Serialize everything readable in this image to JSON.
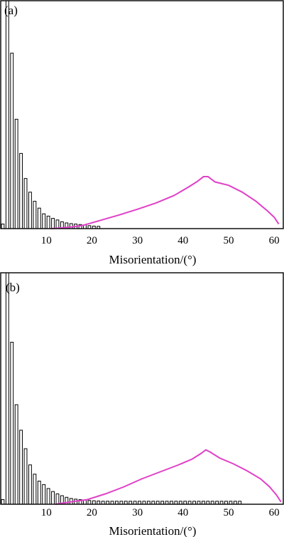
{
  "chart_data": [
    {
      "type": "bar",
      "panel_label": "(a)",
      "xlabel": "Misorientation/(°)",
      "xlim": [
        0,
        62
      ],
      "xticks": [
        10,
        20,
        30,
        40,
        50,
        60
      ],
      "ylim": [
        0,
        1
      ],
      "bars": {
        "x": [
          0,
          1,
          2,
          3,
          4,
          5,
          6,
          7,
          8,
          9,
          10,
          11,
          12,
          13,
          14,
          15,
          16,
          17,
          18,
          19,
          20,
          21
        ],
        "values": [
          0.02,
          1.0,
          0.77,
          0.48,
          0.33,
          0.22,
          0.16,
          0.12,
          0.09,
          0.065,
          0.055,
          0.045,
          0.038,
          0.03,
          0.025,
          0.022,
          0.02,
          0.018,
          0.016,
          0.013,
          0.011,
          0.01
        ]
      },
      "curve": {
        "color": "#e040c8",
        "x": [
          11,
          15,
          18,
          22,
          26,
          30,
          34,
          38,
          41,
          43,
          44.5,
          45.5,
          47,
          50,
          53,
          56,
          58.5,
          60,
          61
        ],
        "y": [
          0.0,
          0.006,
          0.014,
          0.037,
          0.06,
          0.085,
          0.112,
          0.145,
          0.18,
          0.205,
          0.228,
          0.228,
          0.205,
          0.19,
          0.16,
          0.12,
          0.078,
          0.05,
          0.02
        ]
      }
    },
    {
      "type": "bar",
      "panel_label": "(b)",
      "xlabel": "Misorientation/(°)",
      "xlim": [
        0,
        62
      ],
      "xticks": [
        10,
        20,
        30,
        40,
        50,
        60
      ],
      "ylim": [
        0,
        1
      ],
      "bars": {
        "x": [
          0,
          1,
          2,
          3,
          4,
          5,
          6,
          7,
          8,
          9,
          10,
          11,
          12,
          13,
          14,
          15,
          16,
          17,
          18,
          19,
          20,
          21,
          22,
          23,
          24,
          25,
          26,
          27,
          28,
          29,
          30,
          31,
          32,
          33,
          34,
          35,
          36,
          37,
          38,
          39,
          40,
          41,
          42,
          43,
          44,
          45,
          46,
          47,
          48,
          49,
          50,
          51,
          52
        ],
        "values": [
          0.02,
          1.0,
          0.7,
          0.43,
          0.32,
          0.24,
          0.17,
          0.13,
          0.1,
          0.085,
          0.068,
          0.055,
          0.045,
          0.037,
          0.03,
          0.025,
          0.022,
          0.02,
          0.018,
          0.016,
          0.015,
          0.014,
          0.013,
          0.013,
          0.013,
          0.013,
          0.013,
          0.013,
          0.013,
          0.013,
          0.013,
          0.013,
          0.013,
          0.013,
          0.013,
          0.013,
          0.013,
          0.013,
          0.013,
          0.013,
          0.013,
          0.013,
          0.013,
          0.013,
          0.013,
          0.013,
          0.013,
          0.013,
          0.013,
          0.013,
          0.013,
          0.013,
          0.013
        ]
      },
      "curve": {
        "color": "#e040c8",
        "x": [
          12,
          16,
          19,
          23,
          27,
          31,
          35,
          39,
          42,
          44,
          45,
          46,
          48,
          51,
          54,
          57,
          59,
          60.5,
          61.5
        ],
        "y": [
          0.0,
          0.012,
          0.02,
          0.045,
          0.075,
          0.11,
          0.14,
          0.17,
          0.195,
          0.22,
          0.235,
          0.225,
          0.2,
          0.175,
          0.145,
          0.11,
          0.075,
          0.04,
          0.01
        ]
      }
    }
  ]
}
